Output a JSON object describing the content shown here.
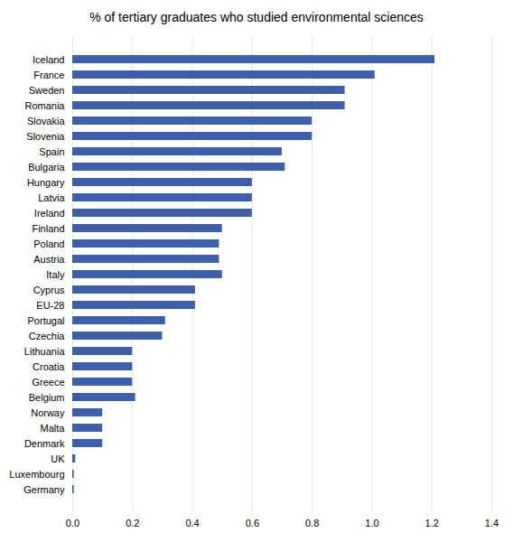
{
  "chart_data": {
    "type": "bar",
    "orientation": "horizontal",
    "title": "% of tertiary graduates who studied environmental sciences",
    "categories": [
      "Iceland",
      "France",
      "Sweden",
      "Romania",
      "Slovakia",
      "Slovenia",
      "Spain",
      "Bulgaria",
      "Hungary",
      "Latvia",
      "Ireland",
      "Finland",
      "Poland",
      "Austria",
      "Italy",
      "Cyprus",
      "EU-28",
      "Portugal",
      "Czechia",
      "Lithuania",
      "Croatia",
      "Greece",
      "Belgium",
      "Norway",
      "Malta",
      "Denmark",
      "UK",
      "Luxembourg",
      "Germany"
    ],
    "values": [
      1.21,
      1.01,
      0.91,
      0.91,
      0.8,
      0.8,
      0.7,
      0.71,
      0.6,
      0.6,
      0.6,
      0.5,
      0.49,
      0.49,
      0.5,
      0.41,
      0.41,
      0.31,
      0.3,
      0.2,
      0.2,
      0.2,
      0.21,
      0.1,
      0.1,
      0.1,
      0.01,
      0.005,
      0.005
    ],
    "color": "#3d5eaa",
    "xlim": [
      0,
      1.4
    ],
    "xticks": [
      {
        "value": 0,
        "label": "0.0"
      },
      0.2,
      0.4,
      0.6,
      0.8,
      {
        "value": 1,
        "label": "1.0"
      },
      1.2,
      1.4
    ],
    "grid": true
  }
}
